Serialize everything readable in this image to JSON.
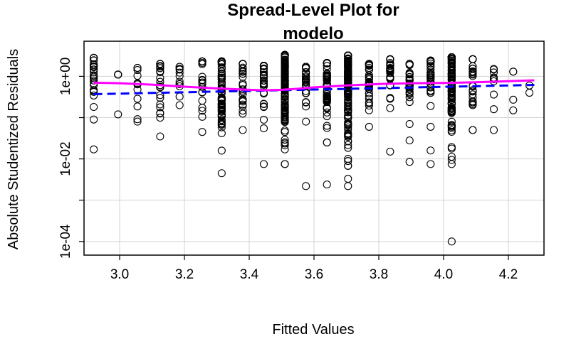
{
  "chart_data": {
    "type": "scatter",
    "title_lines": [
      "Spread-Level Plot for",
      "modelo"
    ],
    "xlabel": "Fitted Values",
    "ylabel": "Absolute Studentized Residuals",
    "y_scale": "log10",
    "xlim": [
      2.89,
      4.31
    ],
    "ylim_log10": [
      -4.33,
      0.85
    ],
    "x_ticks": [
      {
        "value": 3.0,
        "label": "3.0"
      },
      {
        "value": 3.2,
        "label": "3.2"
      },
      {
        "value": 3.4,
        "label": "3.4"
      },
      {
        "value": 3.6,
        "label": "3.6"
      },
      {
        "value": 3.8,
        "label": "3.8"
      },
      {
        "value": 4.0,
        "label": "4.0"
      },
      {
        "value": 4.2,
        "label": "4.2"
      }
    ],
    "y_ticks": [
      {
        "value": 0.0001,
        "label": "1e-04"
      },
      {
        "value": 0.001,
        "label": ""
      },
      {
        "value": 0.01,
        "label": "1e-02"
      },
      {
        "value": 0.1,
        "label": ""
      },
      {
        "value": 1,
        "label": "1e+00"
      }
    ],
    "grid": true,
    "columns": [
      {
        "x": 2.92,
        "ymin": 0.09,
        "ymax": 2.8,
        "n": 30,
        "extra": [
          0.017
        ]
      },
      {
        "x": 2.995,
        "ymin": 0.12,
        "ymax": 1.1,
        "n": 6,
        "extra": []
      },
      {
        "x": 3.055,
        "ymin": 0.08,
        "ymax": 1.6,
        "n": 12,
        "extra": []
      },
      {
        "x": 3.125,
        "ymin": 0.035,
        "ymax": 2.0,
        "n": 25,
        "extra": []
      },
      {
        "x": 3.185,
        "ymin": 0.2,
        "ymax": 1.7,
        "n": 12,
        "extra": []
      },
      {
        "x": 3.255,
        "ymin": 0.045,
        "ymax": 2.3,
        "n": 25,
        "extra": []
      },
      {
        "x": 3.315,
        "ymin": 0.0045,
        "ymax": 2.3,
        "n": 95,
        "extra": []
      },
      {
        "x": 3.38,
        "ymin": 0.05,
        "ymax": 2.0,
        "n": 30,
        "extra": []
      },
      {
        "x": 3.445,
        "ymin": 0.055,
        "ymax": 1.8,
        "n": 40,
        "extra": [
          0.0075
        ]
      },
      {
        "x": 3.51,
        "ymin": 0.0075,
        "ymax": 3.3,
        "n": 150,
        "extra": []
      },
      {
        "x": 3.575,
        "ymin": 0.08,
        "ymax": 1.7,
        "n": 30,
        "extra": [
          0.0022
        ]
      },
      {
        "x": 3.64,
        "ymin": 0.025,
        "ymax": 2.1,
        "n": 70,
        "extra": [
          0.0024
        ]
      },
      {
        "x": 3.705,
        "ymin": 0.0068,
        "ymax": 3.2,
        "n": 160,
        "extra": [
          0.0022,
          0.0033
        ]
      },
      {
        "x": 3.77,
        "ymin": 0.06,
        "ymax": 2.0,
        "n": 40,
        "extra": []
      },
      {
        "x": 3.835,
        "ymin": 0.17,
        "ymax": 2.6,
        "n": 30,
        "extra": [
          0.015
        ]
      },
      {
        "x": 3.895,
        "ymin": 0.07,
        "ymax": 2.0,
        "n": 35,
        "extra": [
          0.028,
          0.0085
        ]
      },
      {
        "x": 3.96,
        "ymin": 0.06,
        "ymax": 2.4,
        "n": 40,
        "extra": [
          0.016,
          0.0075
        ]
      },
      {
        "x": 4.025,
        "ymin": 0.0075,
        "ymax": 2.9,
        "n": 130,
        "extra": [
          0.0001
        ]
      },
      {
        "x": 4.09,
        "ymin": 0.05,
        "ymax": 2.6,
        "n": 30,
        "extra": []
      },
      {
        "x": 4.155,
        "ymin": 0.16,
        "ymax": 1.5,
        "n": 10,
        "extra": [
          0.05
        ]
      },
      {
        "x": 4.215,
        "ymin": 0.15,
        "ymax": 1.3,
        "n": 4,
        "extra": []
      },
      {
        "x": 4.265,
        "ymin": 0.4,
        "ymax": 0.6,
        "n": 2,
        "extra": []
      }
    ],
    "series": [
      {
        "kind": "fit-line",
        "color": "#0000ff",
        "style": "dashed",
        "x": [
          2.92,
          4.28
        ],
        "y": [
          0.37,
          0.62
        ]
      },
      {
        "kind": "smooth-line",
        "color": "#ff00ff",
        "style": "solid",
        "x": [
          2.92,
          3.0,
          3.1,
          3.2,
          3.3,
          3.4,
          3.45,
          3.5,
          3.55,
          3.6,
          3.7,
          3.8,
          3.9,
          4.0,
          4.1,
          4.2,
          4.28
        ],
        "y": [
          0.7,
          0.68,
          0.63,
          0.56,
          0.51,
          0.47,
          0.46,
          0.47,
          0.5,
          0.54,
          0.6,
          0.65,
          0.68,
          0.69,
          0.72,
          0.76,
          0.8
        ]
      }
    ]
  }
}
